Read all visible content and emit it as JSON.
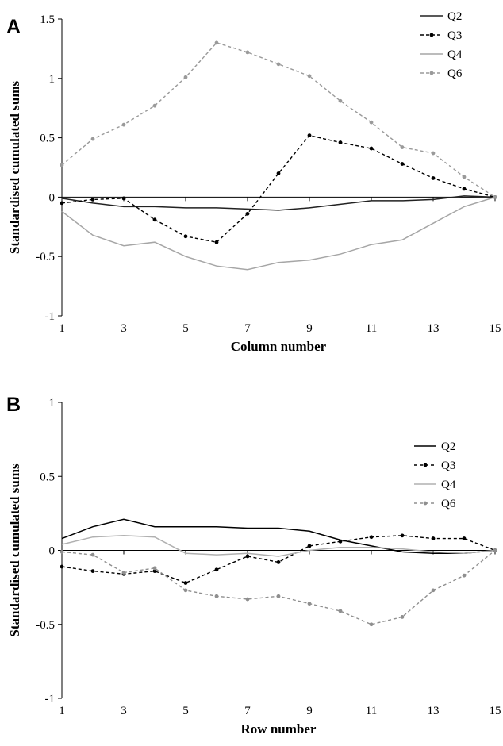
{
  "chart_data": [
    {
      "type": "line",
      "panel_label": "A",
      "xlabel": "Column number",
      "ylabel": "Standardised cumulated sums",
      "xlim": [
        1,
        15
      ],
      "ylim": [
        -1,
        1.5
      ],
      "x_ticks": [
        1,
        3,
        5,
        7,
        9,
        11,
        13,
        15
      ],
      "y_ticks": [
        -1,
        -0.5,
        0,
        0.5,
        1,
        1.5
      ],
      "y_tick_labels": [
        "-1",
        "-0.5",
        "0",
        "0.5",
        "1",
        "1.5"
      ],
      "legend_placement": "top-right",
      "grid": false,
      "x": [
        1,
        2,
        3,
        4,
        5,
        6,
        7,
        8,
        9,
        10,
        11,
        12,
        13,
        14,
        15
      ],
      "series": [
        {
          "name": "Q2",
          "color": "#222222",
          "dash": "solid",
          "markers": false,
          "values": [
            -0.01,
            -0.05,
            -0.08,
            -0.08,
            -0.09,
            -0.09,
            -0.1,
            -0.11,
            -0.09,
            -0.06,
            -0.03,
            -0.03,
            -0.02,
            0.01,
            0
          ]
        },
        {
          "name": "Q3",
          "color": "#000000",
          "dash": "dashed",
          "markers": true,
          "values": [
            -0.05,
            -0.02,
            -0.01,
            -0.19,
            -0.33,
            -0.38,
            -0.14,
            0.2,
            0.52,
            0.46,
            0.41,
            0.28,
            0.16,
            0.07,
            0
          ]
        },
        {
          "name": "Q4",
          "color": "#a6a6a6",
          "dash": "solid",
          "markers": false,
          "values": [
            -0.12,
            -0.32,
            -0.41,
            -0.38,
            -0.5,
            -0.58,
            -0.61,
            -0.55,
            -0.53,
            -0.48,
            -0.4,
            -0.36,
            -0.22,
            -0.08,
            0
          ]
        },
        {
          "name": "Q6",
          "color": "#9a9a9a",
          "dash": "dashed",
          "markers": true,
          "values": [
            0.27,
            0.49,
            0.61,
            0.77,
            1.01,
            1.3,
            1.22,
            1.12,
            1.02,
            0.81,
            0.63,
            0.42,
            0.37,
            0.17,
            0
          ]
        }
      ]
    },
    {
      "type": "line",
      "panel_label": "B",
      "xlabel": "Row number",
      "ylabel": "Standardised cumulated sums",
      "xlim": [
        1,
        15
      ],
      "ylim": [
        -1,
        1
      ],
      "x_ticks": [
        1,
        3,
        5,
        7,
        9,
        11,
        13,
        15
      ],
      "y_ticks": [
        -1,
        -0.5,
        0,
        0.5,
        1
      ],
      "y_tick_labels": [
        "-1",
        "-0.5",
        "0",
        "0.5",
        "1"
      ],
      "legend_placement": "right",
      "grid": false,
      "x": [
        1,
        2,
        3,
        4,
        5,
        6,
        7,
        8,
        9,
        10,
        11,
        12,
        13,
        14,
        15
      ],
      "series": [
        {
          "name": "Q2",
          "color": "#000000",
          "dash": "solid",
          "markers": false,
          "values": [
            0.08,
            0.16,
            0.21,
            0.16,
            0.16,
            0.16,
            0.15,
            0.15,
            0.13,
            0.07,
            0.03,
            -0.01,
            -0.02,
            -0.02,
            0
          ]
        },
        {
          "name": "Q3",
          "color": "#000000",
          "dash": "dashed",
          "markers": true,
          "values": [
            -0.11,
            -0.14,
            -0.16,
            -0.14,
            -0.22,
            -0.13,
            -0.04,
            -0.08,
            0.03,
            0.06,
            0.09,
            0.1,
            0.08,
            0.08,
            0
          ]
        },
        {
          "name": "Q4",
          "color": "#b0b0b0",
          "dash": "solid",
          "markers": false,
          "values": [
            0.04,
            0.09,
            0.1,
            0.09,
            -0.02,
            -0.03,
            -0.02,
            -0.04,
            0.0,
            0.02,
            0.02,
            0.01,
            -0.01,
            -0.02,
            0
          ]
        },
        {
          "name": "Q6",
          "color": "#8f8f8f",
          "dash": "dashed",
          "markers": true,
          "values": [
            -0.01,
            -0.03,
            -0.15,
            -0.12,
            -0.27,
            -0.31,
            -0.33,
            -0.31,
            -0.36,
            -0.41,
            -0.5,
            -0.45,
            -0.27,
            -0.17,
            0
          ]
        }
      ]
    }
  ]
}
